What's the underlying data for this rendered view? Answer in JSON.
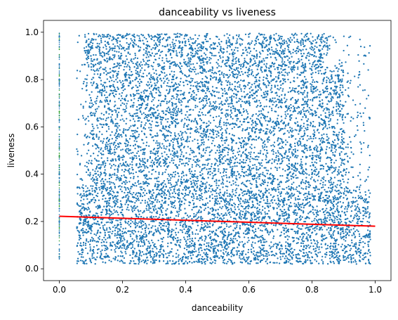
{
  "chart_data": {
    "type": "scatter",
    "title": "danceability vs liveness",
    "xlabel": "danceability",
    "ylabel": "liveness",
    "xlim": [
      -0.05,
      1.05
    ],
    "ylim": [
      -0.05,
      1.05
    ],
    "xticks": [
      0.0,
      0.2,
      0.4,
      0.6,
      0.8,
      1.0
    ],
    "xtick_labels": [
      "0.0",
      "0.2",
      "0.4",
      "0.6",
      "0.8",
      "1.0"
    ],
    "yticks": [
      0.0,
      0.2,
      0.4,
      0.6,
      0.8,
      1.0
    ],
    "ytick_labels": [
      "0.0",
      "0.2",
      "0.4",
      "0.6",
      "0.8",
      "1.0"
    ],
    "grid": false,
    "legend": "none",
    "colors": {
      "points": "#1f77b4",
      "regression": "#ff0000"
    },
    "scatter_density": {
      "description": "dense cloud of points",
      "x_range": [
        0.0,
        1.0
      ],
      "y_range": [
        0.0,
        1.0
      ],
      "sample_points": [
        [
          0.0,
          0.05
        ],
        [
          0.0,
          0.2
        ],
        [
          0.0,
          0.4
        ],
        [
          0.0,
          0.6
        ],
        [
          0.0,
          0.8
        ],
        [
          0.0,
          0.98
        ],
        [
          0.07,
          0.05
        ],
        [
          0.07,
          0.38
        ],
        [
          0.1,
          0.15
        ],
        [
          0.1,
          0.35
        ],
        [
          0.1,
          0.9
        ],
        [
          0.15,
          0.05
        ],
        [
          0.15,
          0.25
        ],
        [
          0.15,
          0.55
        ],
        [
          0.15,
          0.98
        ],
        [
          0.2,
          0.1
        ],
        [
          0.2,
          0.3
        ],
        [
          0.2,
          0.7
        ],
        [
          0.2,
          0.98
        ],
        [
          0.3,
          0.05
        ],
        [
          0.3,
          0.2
        ],
        [
          0.3,
          0.45
        ],
        [
          0.3,
          0.8
        ],
        [
          0.3,
          0.98
        ],
        [
          0.4,
          0.05
        ],
        [
          0.4,
          0.15
        ],
        [
          0.4,
          0.35
        ],
        [
          0.4,
          0.65
        ],
        [
          0.4,
          0.99
        ],
        [
          0.5,
          0.05
        ],
        [
          0.5,
          0.2
        ],
        [
          0.5,
          0.5
        ],
        [
          0.5,
          0.85
        ],
        [
          0.5,
          0.98
        ],
        [
          0.6,
          0.05
        ],
        [
          0.6,
          0.15
        ],
        [
          0.6,
          0.4
        ],
        [
          0.6,
          0.7
        ],
        [
          0.6,
          0.98
        ],
        [
          0.7,
          0.05
        ],
        [
          0.7,
          0.25
        ],
        [
          0.7,
          0.55
        ],
        [
          0.7,
          0.95
        ],
        [
          0.8,
          0.05
        ],
        [
          0.8,
          0.2
        ],
        [
          0.8,
          0.4
        ],
        [
          0.8,
          0.75
        ],
        [
          0.9,
          0.05
        ],
        [
          0.9,
          0.15
        ],
        [
          0.9,
          0.3
        ],
        [
          0.9,
          0.55
        ],
        [
          0.95,
          0.1
        ],
        [
          0.95,
          0.25
        ],
        [
          0.97,
          0.9
        ],
        [
          0.97,
          0.05
        ]
      ]
    },
    "regression_line": {
      "x": [
        0.0,
        1.0
      ],
      "y": [
        0.222,
        0.18
      ]
    }
  }
}
